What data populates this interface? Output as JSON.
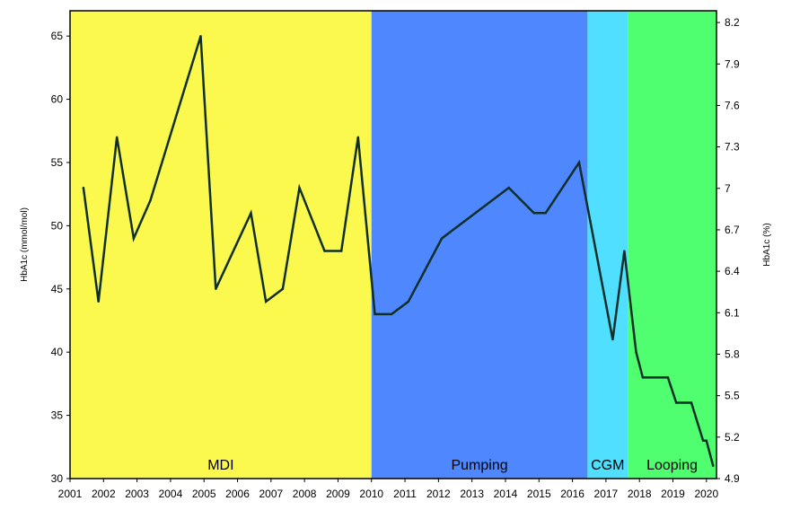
{
  "chart_data": {
    "type": "line",
    "title": "",
    "xlabel": "",
    "ylabel": "HbA1c (mmol/mol)",
    "y2label": "HbA1c (%)",
    "xlim": [
      2001,
      2020.3
    ],
    "ylim": [
      30,
      67
    ],
    "y2lim": [
      4.9,
      8.285
    ],
    "x_ticks": [
      "2001",
      "2002",
      "2003",
      "2004",
      "2005",
      "2006",
      "2007",
      "2008",
      "2009",
      "2010",
      "2011",
      "2012",
      "2013",
      "2014",
      "2015",
      "2016",
      "2017",
      "2018",
      "2019",
      "2020"
    ],
    "y_ticks": [
      30,
      35,
      40,
      45,
      50,
      55,
      60,
      65
    ],
    "y2_ticks": [
      "4.9",
      "5.2",
      "5.5",
      "5.8",
      "6.1",
      "6.4",
      "6.7",
      "7",
      "7.3",
      "7.6",
      "7.9",
      "8.2"
    ],
    "grid": false,
    "regions": [
      {
        "label": "MDI",
        "start": 2001,
        "end": 2010,
        "color": "#fcf94e"
      },
      {
        "label": "Pumping",
        "start": 2010,
        "end": 2016.45,
        "color": "#4f87ff"
      },
      {
        "label": "CGM",
        "start": 2016.45,
        "end": 2017.65,
        "color": "#50dfff"
      },
      {
        "label": "Looping",
        "start": 2017.65,
        "end": 2020.3,
        "color": "#50ff6f"
      }
    ],
    "series": [
      {
        "color": "#0f2f28",
        "points": [
          [
            2001.4,
            53
          ],
          [
            2001.85,
            44
          ],
          [
            2002.4,
            57
          ],
          [
            2002.9,
            49
          ],
          [
            2003.4,
            52
          ],
          [
            2004.9,
            65
          ],
          [
            2005.35,
            45
          ],
          [
            2006.4,
            51
          ],
          [
            2006.85,
            44
          ],
          [
            2007.35,
            45
          ],
          [
            2007.85,
            53
          ],
          [
            2008.6,
            48
          ],
          [
            2009.1,
            48
          ],
          [
            2009.6,
            57
          ],
          [
            2010.1,
            43
          ],
          [
            2010.6,
            43
          ],
          [
            2011.1,
            44
          ],
          [
            2012.1,
            49
          ],
          [
            2014.1,
            53
          ],
          [
            2014.85,
            51
          ],
          [
            2015.2,
            51
          ],
          [
            2016.2,
            55
          ],
          [
            2017.2,
            41
          ],
          [
            2017.55,
            48
          ],
          [
            2017.9,
            40
          ],
          [
            2018.1,
            38
          ],
          [
            2018.85,
            38
          ],
          [
            2019.1,
            36
          ],
          [
            2019.55,
            36
          ],
          [
            2019.9,
            33
          ],
          [
            2020.0,
            33
          ],
          [
            2020.2,
            31
          ]
        ]
      }
    ]
  }
}
